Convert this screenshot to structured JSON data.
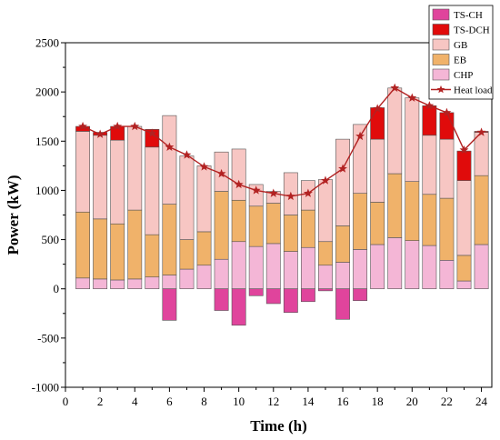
{
  "chart_data": {
    "type": "bar",
    "subtype": "stacked-bar-with-line",
    "title": "",
    "xlabel": "Time (h)",
    "ylabel": "Power (kW)",
    "xlim": [
      0,
      24.6
    ],
    "ylim": [
      -1000,
      2500
    ],
    "xticks": [
      0,
      2,
      4,
      6,
      8,
      10,
      12,
      14,
      16,
      18,
      20,
      22,
      24
    ],
    "yticks": [
      -1000,
      -500,
      0,
      500,
      1000,
      1500,
      2000,
      2500
    ],
    "x": [
      1,
      2,
      3,
      4,
      5,
      6,
      7,
      8,
      9,
      10,
      11,
      12,
      13,
      14,
      15,
      16,
      17,
      18,
      19,
      20,
      21,
      22,
      23,
      24
    ],
    "series": [
      {
        "name": "CHP",
        "color": "#f4b6d6",
        "values": [
          110,
          100,
          90,
          100,
          120,
          140,
          200,
          240,
          300,
          480,
          430,
          460,
          380,
          420,
          240,
          270,
          400,
          450,
          520,
          490,
          440,
          290,
          80,
          450
        ]
      },
      {
        "name": "EB",
        "color": "#f0b26a",
        "values": [
          670,
          610,
          570,
          700,
          430,
          720,
          300,
          340,
          690,
          420,
          410,
          410,
          370,
          380,
          240,
          370,
          570,
          430,
          650,
          600,
          520,
          630,
          260,
          700
        ]
      },
      {
        "name": "GB",
        "color": "#f7c6c3",
        "values": [
          820,
          850,
          850,
          850,
          890,
          900,
          850,
          670,
          400,
          520,
          220,
          120,
          430,
          300,
          630,
          880,
          700,
          640,
          870,
          850,
          600,
          600,
          760,
          440
        ]
      },
      {
        "name": "TS-DCH",
        "color": "#e00b0b",
        "values": [
          50,
          30,
          140,
          0,
          180,
          0,
          0,
          0,
          0,
          0,
          0,
          0,
          0,
          0,
          0,
          0,
          0,
          320,
          0,
          0,
          300,
          270,
          300,
          10
        ]
      },
      {
        "name": "TS-CH",
        "color": "#e0449c",
        "values": [
          0,
          0,
          0,
          0,
          0,
          -320,
          0,
          0,
          -220,
          -370,
          -70,
          -150,
          -240,
          -130,
          -20,
          -310,
          -120,
          0,
          0,
          0,
          0,
          0,
          0,
          0
        ]
      }
    ],
    "line": {
      "name": "Heat load",
      "color": "#b22222",
      "values": [
        1650,
        1570,
        1650,
        1650,
        1580,
        1440,
        1360,
        1240,
        1170,
        1060,
        1000,
        970,
        940,
        970,
        1100,
        1220,
        1550,
        1830,
        2040,
        1940,
        1860,
        1790,
        1410,
        1590
      ]
    },
    "legend": {
      "position": "top-right"
    },
    "grid": false
  }
}
